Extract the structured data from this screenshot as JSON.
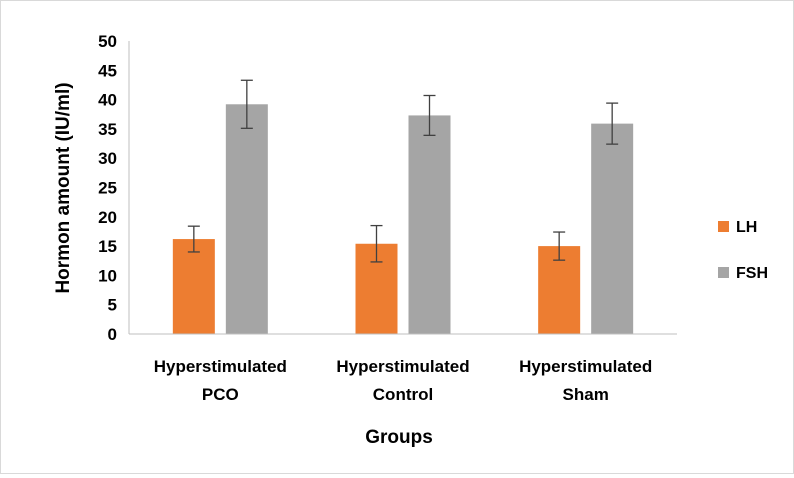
{
  "chart_data": {
    "type": "bar",
    "categories": [
      [
        "Hyperstimulated",
        "PCO"
      ],
      [
        "Hyperstimulated",
        "Control"
      ],
      [
        "Hyperstimulated",
        "Sham"
      ]
    ],
    "series": [
      {
        "name": "LH",
        "color": "#ED7D31",
        "values": [
          16.2,
          15.4,
          15.0
        ],
        "errors": [
          2.2,
          3.1,
          2.4
        ]
      },
      {
        "name": "FSH",
        "color": "#A5A5A5",
        "values": [
          39.2,
          37.3,
          35.9
        ],
        "errors": [
          4.1,
          3.4,
          3.5
        ]
      }
    ],
    "xlabel": "Groups",
    "ylabel": "Hormon amount (IU/ml)",
    "ylim": [
      0,
      50
    ],
    "yticks": [
      "0",
      "5",
      "10",
      "15",
      "20",
      "25",
      "30",
      "35",
      "40",
      "45",
      "50"
    ],
    "grid": false,
    "legend": "right"
  }
}
